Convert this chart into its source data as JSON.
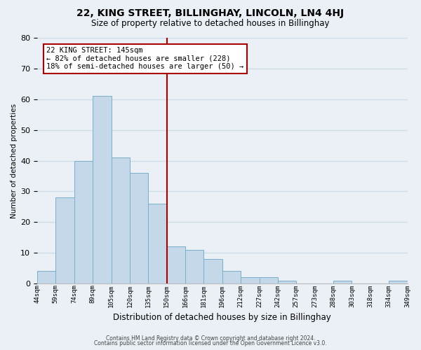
{
  "title": "22, KING STREET, BILLINGHAY, LINCOLN, LN4 4HJ",
  "subtitle": "Size of property relative to detached houses in Billinghay",
  "xlabel": "Distribution of detached houses by size in Billinghay",
  "ylabel": "Number of detached properties",
  "bar_values": [
    4,
    28,
    40,
    61,
    41,
    36,
    26,
    12,
    11,
    8,
    4,
    2,
    2,
    1,
    0,
    0,
    1,
    0,
    0,
    1
  ],
  "bar_labels": [
    "44sqm",
    "59sqm",
    "74sqm",
    "89sqm",
    "105sqm",
    "120sqm",
    "135sqm",
    "150sqm",
    "166sqm",
    "181sqm",
    "196sqm",
    "212sqm",
    "227sqm",
    "242sqm",
    "257sqm",
    "273sqm",
    "288sqm",
    "303sqm",
    "318sqm",
    "334sqm",
    "349sqm"
  ],
  "bar_color": "#c5d8ea",
  "bar_edge_color": "#7aaec8",
  "vline_color": "#aa0000",
  "vline_x_idx": 7,
  "annotation_title": "22 KING STREET: 145sqm",
  "annotation_line1": "← 82% of detached houses are smaller (228)",
  "annotation_line2": "18% of semi-detached houses are larger (50) →",
  "annotation_box_color": "#ffffff",
  "annotation_box_edge": "#aa0000",
  "ylim": [
    0,
    80
  ],
  "yticks": [
    0,
    10,
    20,
    30,
    40,
    50,
    60,
    70,
    80
  ],
  "footer1": "Contains HM Land Registry data © Crown copyright and database right 2024.",
  "footer2": "Contains public sector information licensed under the Open Government Licence v3.0.",
  "background_color": "#eaf0f6",
  "grid_color": "#d0dce8"
}
